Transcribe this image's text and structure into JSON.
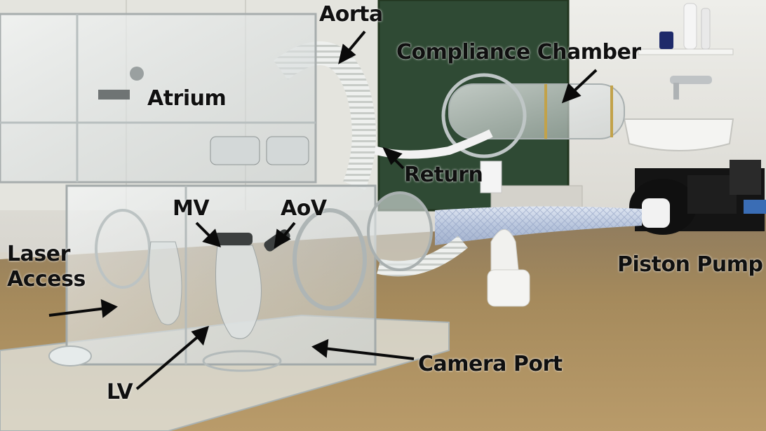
{
  "labels": {
    "aorta": "Aorta",
    "compliance_chamber": "Compliance Chamber",
    "atrium": "Atrium",
    "return": "Return",
    "mv": "MV",
    "aov": "AoV",
    "laser_access_line1": "Laser",
    "laser_access_line2": "Access",
    "piston_pump": "Piston Pump",
    "camera_port": "Camera Port",
    "lv": "LV"
  },
  "colors": {
    "label_text": "#101010",
    "arrow": "#0a0a0a",
    "table": "#a58a5c",
    "wall": "#e8e6e0",
    "chalkboard": "#2f4a34"
  }
}
